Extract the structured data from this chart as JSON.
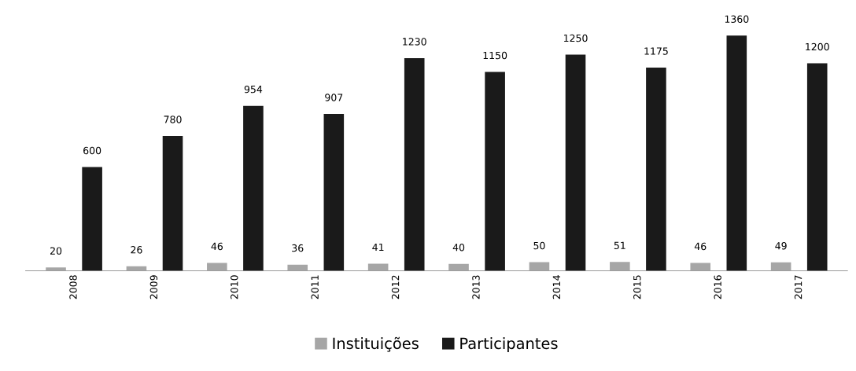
{
  "chart_data": {
    "type": "bar",
    "categories": [
      "2008",
      "2009",
      "2010",
      "2011",
      "2012",
      "2013",
      "2014",
      "2015",
      "2016",
      "2017"
    ],
    "series": [
      {
        "name": "Instituições",
        "color": "#a6a6a6",
        "values": [
          20,
          26,
          46,
          36,
          41,
          40,
          50,
          51,
          46,
          49
        ]
      },
      {
        "name": "Participantes",
        "color": "#1a1a1a",
        "values": [
          600,
          780,
          954,
          907,
          1230,
          1150,
          1250,
          1175,
          1360,
          1200
        ]
      }
    ],
    "data_labels": true,
    "legend": "bottom",
    "grid": false,
    "tick_labels": "x"
  }
}
